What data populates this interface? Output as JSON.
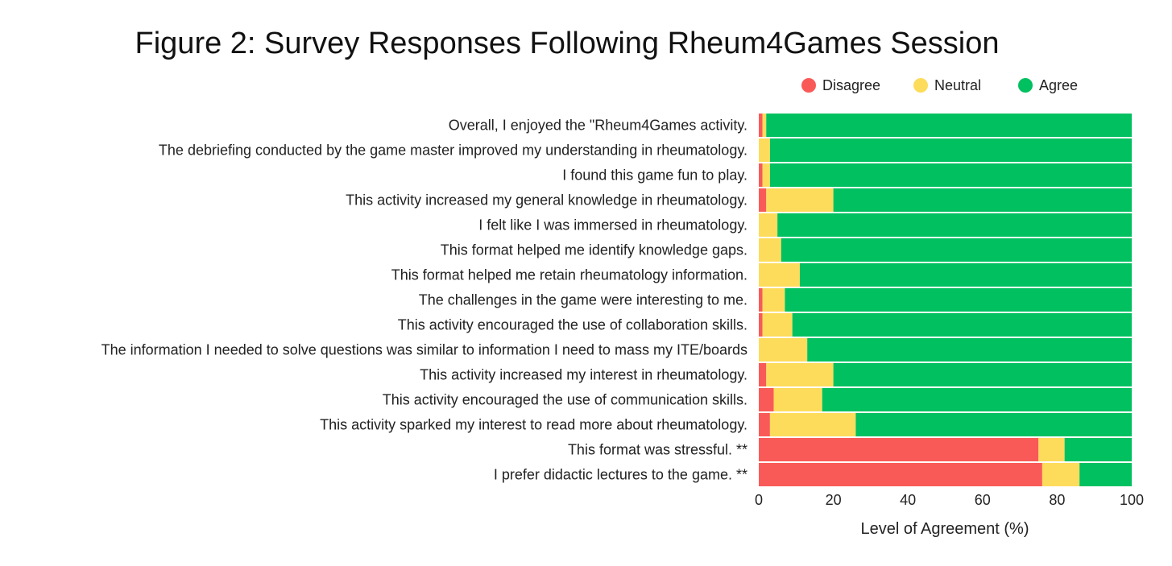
{
  "chart_data": {
    "type": "bar",
    "orientation": "horizontal",
    "stacked": true,
    "title": "Figure 2: Survey Responses Following Rheum4Games Session",
    "xlabel": "Level of Agreement (%)",
    "ylabel": "",
    "xlim": [
      0,
      100
    ],
    "xticks": [
      0,
      20,
      40,
      60,
      80,
      100
    ],
    "legend_position": "top-right",
    "grid": false,
    "categories": [
      "Overall, I enjoyed the \"Rheum4Games activity.",
      "The debriefing conducted by the game master improved my understanding in rheumatology.",
      "I found this game fun to play.",
      "This activity increased my general knowledge in rheumatology.",
      "I felt like I was immersed in rheumatology.",
      "This format helped me identify knowledge gaps.",
      "This format helped me retain rheumatology information.",
      "The challenges in the game were interesting to me.",
      "This activity encouraged the use of collaboration skills.",
      "The information I needed to solve questions was similar to information I need to mass my ITE/boards",
      "This activity increased my interest in rheumatology.",
      "This activity encouraged the use of communication skills.",
      "This activity sparked my interest to read more about rheumatology.",
      "This format was stressful. **",
      "I prefer didactic lectures to the game. **"
    ],
    "series": [
      {
        "name": "Disagree",
        "color": "#f95a58",
        "values": [
          1,
          0,
          1,
          2,
          0,
          0,
          0,
          1,
          1,
          0,
          2,
          4,
          3,
          75,
          76
        ]
      },
      {
        "name": "Neutral",
        "color": "#fddc5c",
        "values": [
          1,
          3,
          2,
          18,
          5,
          6,
          11,
          6,
          8,
          13,
          18,
          13,
          23,
          7,
          10
        ]
      },
      {
        "name": "Agree",
        "color": "#00c060",
        "values": [
          98,
          97,
          97,
          80,
          95,
          94,
          89,
          93,
          91,
          87,
          80,
          83,
          74,
          18,
          14
        ]
      }
    ]
  }
}
